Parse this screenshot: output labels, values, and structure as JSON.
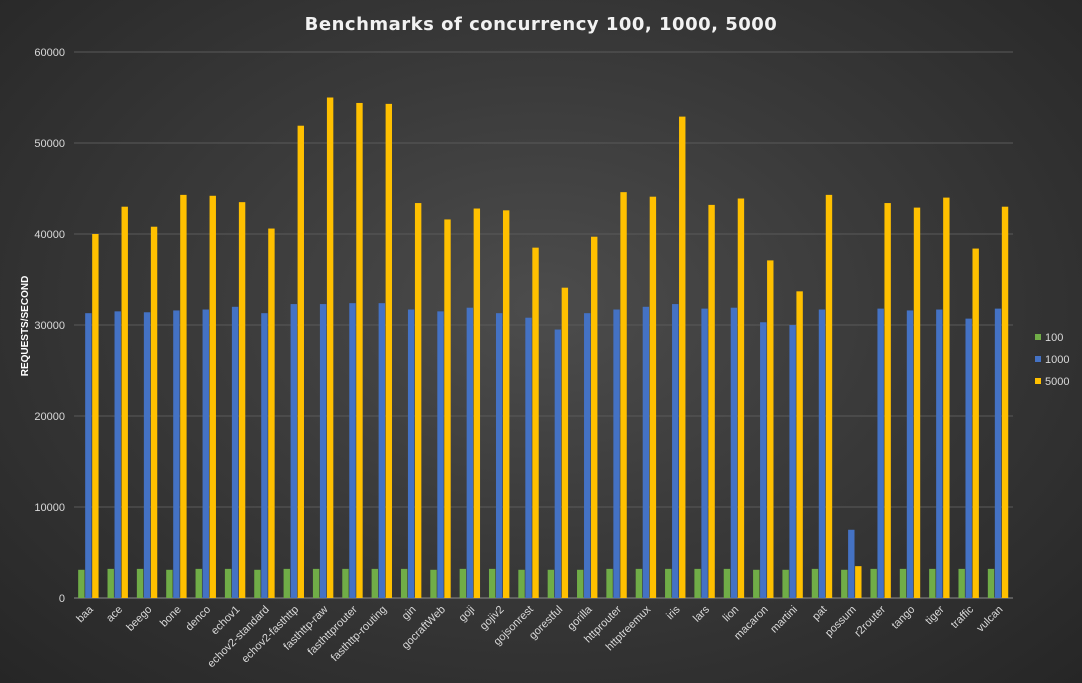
{
  "chart_data": {
    "type": "bar",
    "title": "Benchmarks  of concurrency  100, 1000, 5000",
    "xlabel": "",
    "ylabel": "REQUESTS/SECOND",
    "ylim": [
      0,
      60000
    ],
    "yticks": [
      0,
      10000,
      20000,
      30000,
      40000,
      50000,
      60000
    ],
    "grid": true,
    "legend_position": "right",
    "categories": [
      "baa",
      "ace",
      "beego",
      "bone",
      "denco",
      "echov1",
      "echov2-standard",
      "echov2-fasthttp",
      "fasthttp-raw",
      "fasthttprouter",
      "fasthttp-routing",
      "gin",
      "gocraftWeb",
      "goji",
      "gojiv2",
      "gojsonrest",
      "gorestful",
      "gorilla",
      "httprouter",
      "httptreemux",
      "iris",
      "lars",
      "lion",
      "macaron",
      "martini",
      "pat",
      "possum",
      "r2router",
      "tango",
      "tiger",
      "traffic",
      "vulcan"
    ],
    "series": [
      {
        "name": "100",
        "color": "#70ad47",
        "values": [
          3100,
          3200,
          3200,
          3100,
          3200,
          3200,
          3100,
          3200,
          3200,
          3200,
          3200,
          3200,
          3100,
          3200,
          3200,
          3100,
          3100,
          3100,
          3200,
          3200,
          3200,
          3200,
          3200,
          3100,
          3100,
          3200,
          3100,
          3200,
          3200,
          3200,
          3200,
          3200
        ]
      },
      {
        "name": "1000",
        "color": "#4472c4",
        "values": [
          31300,
          31500,
          31400,
          31600,
          31700,
          32000,
          31300,
          32300,
          32300,
          32400,
          32400,
          31700,
          31500,
          31900,
          31300,
          30800,
          29500,
          31300,
          31700,
          32000,
          32300,
          31800,
          31900,
          30300,
          30000,
          31700,
          7500,
          31800,
          31600,
          31700,
          30700,
          31800
        ]
      },
      {
        "name": "5000",
        "color": "#ffc000",
        "values": [
          40000,
          43000,
          40800,
          44300,
          44200,
          43500,
          40600,
          51900,
          55000,
          54400,
          54300,
          43400,
          41600,
          42800,
          42600,
          38500,
          34100,
          39700,
          44600,
          44100,
          52900,
          43200,
          43900,
          37100,
          33700,
          44300,
          3500,
          43400,
          42900,
          44000,
          38400,
          43000
        ]
      }
    ]
  }
}
